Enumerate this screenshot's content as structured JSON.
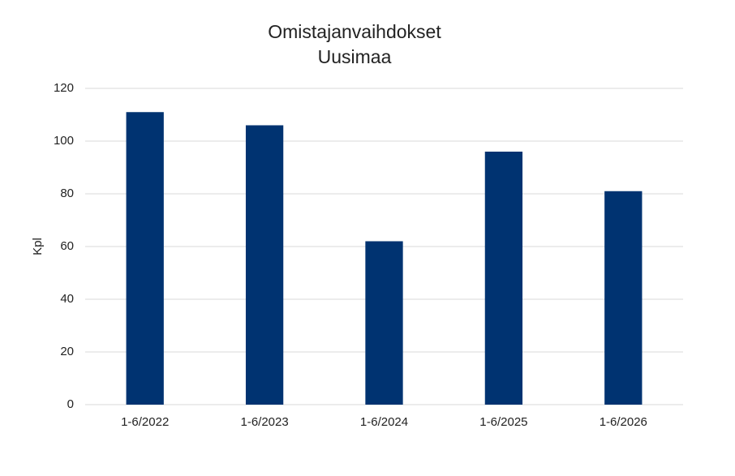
{
  "chart_data": {
    "type": "bar",
    "title": "Omistajanvaihdokset",
    "subtitle": "Uusimaa",
    "y_label": "Kpl",
    "categories": [
      "1-6/2022",
      "1-6/2023",
      "1-6/2024",
      "1-6/2025",
      "1-6/2026"
    ],
    "values": [
      111,
      106,
      62,
      96,
      81
    ],
    "color": "#003371",
    "ylim": [
      0,
      120
    ],
    "yticks": [
      0,
      20,
      40,
      60,
      80,
      100,
      120
    ],
    "grid": true
  }
}
